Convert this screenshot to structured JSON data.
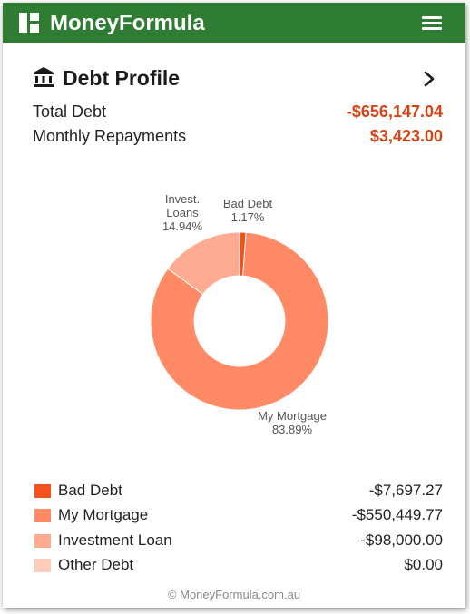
{
  "app": {
    "title": "MoneyFormula",
    "logo_icon": "dashboard-grid-icon",
    "menu_icon": "hamburger-menu-icon",
    "brand_color": "#2e7d32"
  },
  "panel": {
    "title": "Debt Profile",
    "title_icon": "bank-icon",
    "expand_icon": "chevron-right-icon"
  },
  "summary": {
    "total_debt_label": "Total Debt",
    "total_debt_value": "-$656,147.04",
    "monthly_label": "Monthly Repayments",
    "monthly_value": "$3,423.00",
    "value_color": "#d84315"
  },
  "chart_data": {
    "type": "pie",
    "donut": true,
    "slices": [
      {
        "label_lines": [
          "Bad Debt",
          "1.17%"
        ],
        "percent": 1.17,
        "color": "#f4511e"
      },
      {
        "label_lines": [
          "My Mortgage",
          "83.89%"
        ],
        "percent": 83.89,
        "color": "#ff8a65"
      },
      {
        "label_lines": [
          "Invest.",
          "Loans",
          "14.94%"
        ],
        "percent": 14.94,
        "color": "#ffab91"
      },
      {
        "label_lines": [],
        "percent": 0,
        "color": "#ffccbc"
      }
    ]
  },
  "legend": {
    "items": [
      {
        "label": "Bad Debt",
        "value": "-$7,697.27",
        "color": "#f4511e"
      },
      {
        "label": "My Mortgage",
        "value": "-$550,449.77",
        "color": "#ff8a65"
      },
      {
        "label": "Investment Loan",
        "value": "-$98,000.00",
        "color": "#ffab91"
      },
      {
        "label": "Other Debt",
        "value": "$0.00",
        "color": "#ffccbc"
      }
    ]
  },
  "footer": {
    "text": "© MoneyFormula.com.au"
  }
}
